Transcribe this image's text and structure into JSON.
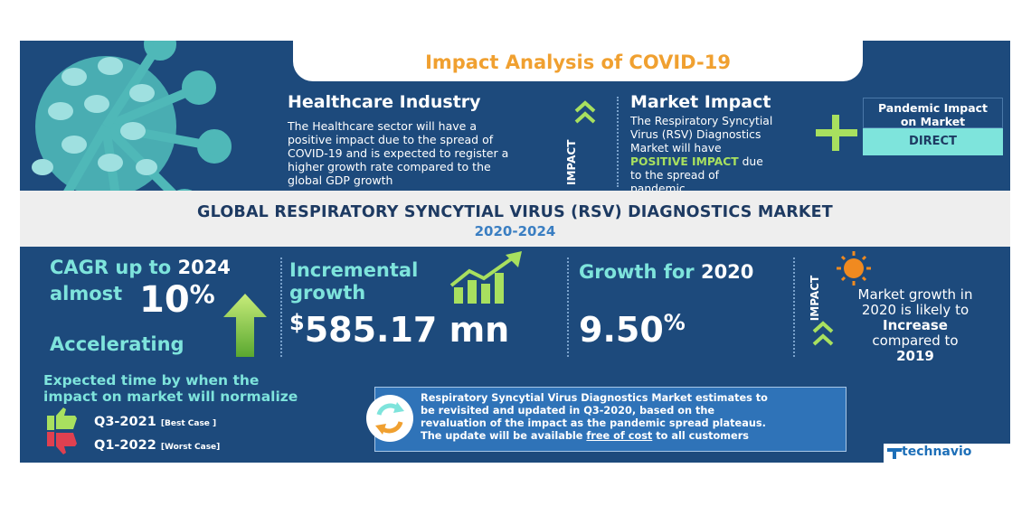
{
  "header": {
    "title": "Impact Analysis of COVID-19"
  },
  "healthcare": {
    "heading": "Healthcare Industry",
    "lines": [
      "The Healthcare sector will have a",
      "positive impact due to the spread of",
      "COVID-19 and is expected to register a",
      "higher growth rate compared to the",
      "global GDP growth"
    ]
  },
  "impact_label": "IMPACT",
  "market_impact": {
    "heading": "Market Impact",
    "lines": [
      "The Respiratory Syncytial",
      "Virus (RSV) Diagnostics",
      "Market will have"
    ],
    "highlight": "POSITIVE IMPACT",
    "after": " due",
    "lines2": [
      "to the spread of",
      "pandemic"
    ]
  },
  "pandemic_box": {
    "label_line1": "Pandemic Impact",
    "label_line2": "on Market",
    "value": "DIRECT"
  },
  "market_title": "GLOBAL RESPIRATORY SYNCYTIAL VIRUS (RSV) DIAGNOSTICS MARKET",
  "market_years": "2020-2024",
  "cagr": {
    "line1": "CAGR up to",
    "year": "2024",
    "almost": "almost",
    "value": "10",
    "unit": "%",
    "trend": "Accelerating"
  },
  "incremental": {
    "line1": "Incremental",
    "line2": "growth",
    "currency": "$",
    "value": "585.17",
    "unit": " mn"
  },
  "growth2020": {
    "label": "Growth for ",
    "year": "2020",
    "value": "9.50",
    "unit": "%"
  },
  "growth_note": {
    "line1": "Market growth in",
    "line2": "2020 is likely to",
    "emph": "Increase",
    "line4": "compared to",
    "year": "2019"
  },
  "normalize": {
    "heading1": "Expected time by when the",
    "heading2": "impact on market will normalize",
    "best": {
      "value": "Q3-2021",
      "tag": "[Best Case ]"
    },
    "worst": {
      "value": "Q1-2022",
      "tag": "[Worst Case]"
    }
  },
  "notice": {
    "line1": "Respiratory Syncytial Virus Diagnostics Market estimates to",
    "line2": "be revisited and updated in Q3-2020, based on the",
    "line3": "revaluation of the impact as the pandemic spread plateaus.",
    "line4_pre": "The update will be available ",
    "line4_link": "free of cost",
    "line4_post": " to all customers"
  },
  "brand": "technavio",
  "colors": {
    "panel": "#1d4a7c",
    "accent_orange": "#f0a030",
    "accent_green": "#a8e05f",
    "accent_teal": "#7ee4dc"
  }
}
